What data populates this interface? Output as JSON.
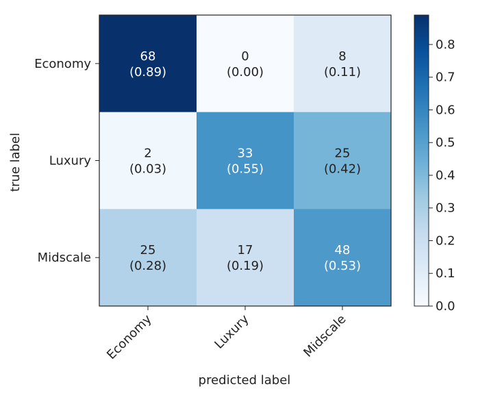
{
  "chart_data": {
    "type": "heatmap",
    "title": "",
    "xlabel": "predicted label",
    "ylabel": "true label",
    "x_categories": [
      "Economy",
      "Luxury",
      "Midscale"
    ],
    "y_categories": [
      "Economy",
      "Luxury",
      "Midscale"
    ],
    "counts": [
      [
        68,
        0,
        8
      ],
      [
        2,
        33,
        25
      ],
      [
        25,
        17,
        48
      ]
    ],
    "proportions": [
      [
        "(0.89)",
        "(0.00)",
        "(0.11)"
      ],
      [
        "(0.03)",
        "(0.55)",
        "(0.42)"
      ],
      [
        "(0.28)",
        "(0.19)",
        "(0.53)"
      ]
    ],
    "norm_values": [
      [
        0.89,
        0.0,
        0.11
      ],
      [
        0.03,
        0.55,
        0.42
      ],
      [
        0.28,
        0.19,
        0.53
      ]
    ],
    "colorbar": {
      "ticks": [
        0.0,
        0.1,
        0.2,
        0.3,
        0.4,
        0.5,
        0.6,
        0.7,
        0.8
      ],
      "tick_labels": [
        "0.0",
        "0.1",
        "0.2",
        "0.3",
        "0.4",
        "0.5",
        "0.6",
        "0.7",
        "0.8"
      ],
      "range": [
        0,
        0.89
      ],
      "colormap": "Blues"
    },
    "colors": {
      "low": "#f7fbff",
      "high": "#08306b",
      "text_dark": "#222222",
      "text_light": "#ffffff"
    }
  }
}
